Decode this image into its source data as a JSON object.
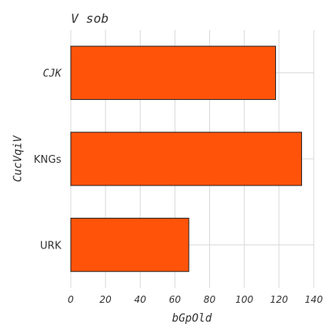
{
  "chart_data": {
    "type": "bar",
    "orientation": "horizontal",
    "title": "V sob",
    "xlabel": "bGpOld",
    "ylabel": "CucVqiV",
    "categories": [
      "CJK",
      "KNGs",
      "URK"
    ],
    "values": [
      118,
      133,
      68
    ],
    "xlim": [
      0,
      140
    ],
    "xticks": [
      0,
      20,
      40,
      60,
      80,
      100,
      120,
      140
    ],
    "grid": true,
    "bar_color": "#ff5309"
  }
}
